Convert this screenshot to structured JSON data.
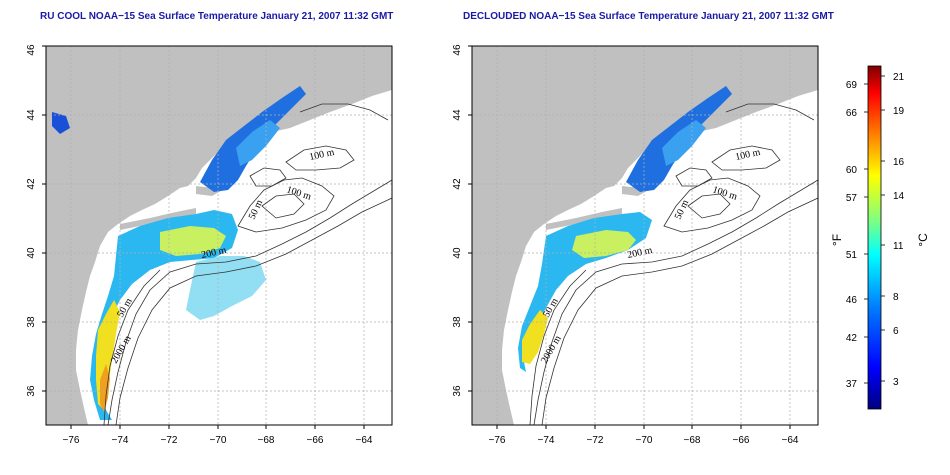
{
  "maps": [
    {
      "title": "RU COOL NOAA−15 Sea Surface Temperature January 21, 2007 11:32 GMT",
      "contour_labels": [
        "100 m",
        "100 m",
        "50 m",
        "200 m",
        "50 m",
        "2000 m"
      ]
    },
    {
      "title": "DECLOUDED NOAA−15 Sea Surface Temperature January 21, 2007 11:32 GMT",
      "contour_labels": [
        "100 m",
        "100 m",
        "50 m",
        "200 m",
        "50 m",
        "2000 m"
      ]
    }
  ],
  "axes": {
    "lon_ticks": [
      "−76",
      "−74",
      "−72",
      "−70",
      "−68",
      "−66",
      "−64"
    ],
    "lat_ticks": [
      "36",
      "38",
      "40",
      "42",
      "44",
      "46"
    ],
    "lon_range": [
      -77.2,
      -62.9
    ],
    "lat_range": [
      35,
      46
    ]
  },
  "colorbar": {
    "fahrenheit_unit": "°F",
    "celsius_unit": "°C",
    "fahrenheit_ticks": [
      "69",
      "66",
      "60",
      "57",
      "51",
      "46",
      "42",
      "37"
    ],
    "celsius_ticks": [
      "21",
      "19",
      "16",
      "14",
      "11",
      "8",
      "6",
      "3"
    ],
    "range_celsius": [
      1,
      22
    ],
    "colors": [
      "#000080",
      "#0000ff",
      "#0080ff",
      "#00ffff",
      "#80ff80",
      "#ffff00",
      "#ff8000",
      "#ff0000",
      "#800000"
    ]
  },
  "legend_colors": {
    "land": "#c0c0c0",
    "ocean_no_data": "#ffffff",
    "contour": "#000000",
    "grid": "#b0b0b0",
    "title": "#1a1aa6"
  }
}
